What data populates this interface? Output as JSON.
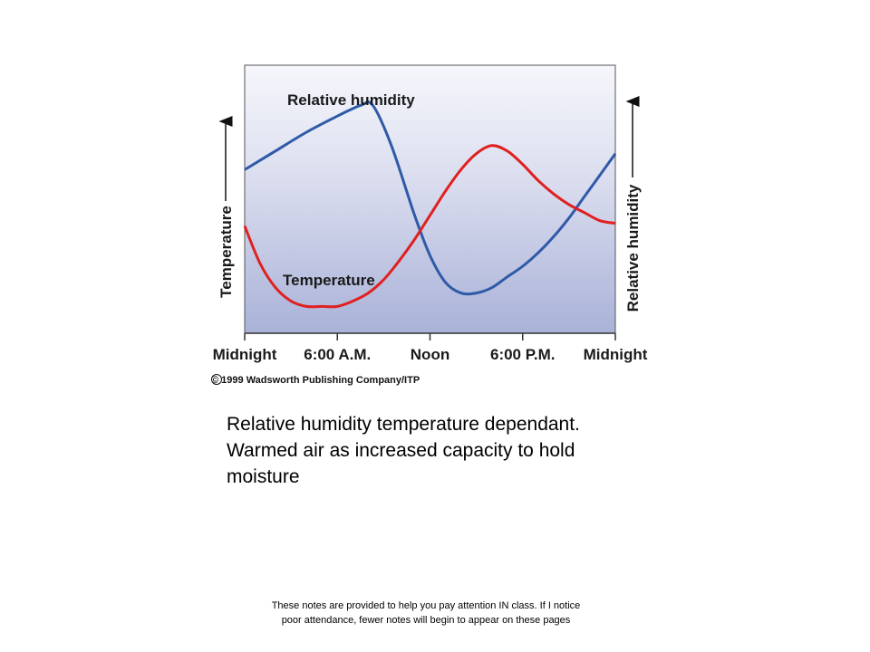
{
  "chart_data": {
    "type": "line",
    "x_categories": [
      "Midnight",
      "6:00 A.M.",
      "Noon",
      "6:00 P.M.",
      "Midnight"
    ],
    "x_hours": [
      0,
      6,
      12,
      18,
      24
    ],
    "y_left_label": "Temperature",
    "y_right_label": "Relative humidity",
    "y_scale": "unlabeled, relative",
    "series": [
      {
        "name": "Relative humidity",
        "color": "#2f5aa8",
        "x": [
          0,
          2,
          4,
          6,
          7.5,
          8.3,
          9.5,
          11,
          12,
          13,
          14,
          15,
          16,
          17,
          18,
          19,
          20,
          21,
          22,
          23,
          24
        ],
        "y": [
          0.61,
          0.68,
          0.75,
          0.81,
          0.85,
          0.85,
          0.7,
          0.44,
          0.29,
          0.19,
          0.15,
          0.15,
          0.17,
          0.21,
          0.25,
          0.3,
          0.36,
          0.43,
          0.51,
          0.59,
          0.67
        ]
      },
      {
        "name": "Temperature",
        "color": "#e02020",
        "x": [
          0,
          1,
          2,
          3,
          4,
          5,
          6,
          7,
          8,
          9,
          10,
          11,
          12,
          13,
          14,
          15,
          16,
          17,
          18,
          19,
          20,
          21,
          22,
          23,
          24
        ],
        "y": [
          0.4,
          0.26,
          0.17,
          0.12,
          0.1,
          0.1,
          0.1,
          0.12,
          0.15,
          0.2,
          0.27,
          0.35,
          0.44,
          0.53,
          0.61,
          0.67,
          0.7,
          0.68,
          0.63,
          0.57,
          0.52,
          0.48,
          0.45,
          0.42,
          0.41
        ]
      }
    ],
    "grid": false
  },
  "copyright": "© 1999 Wadsworth Publishing Company/ITP",
  "caption": {
    "line1": "Relative humidity temperature dependant.",
    "line2": "Warmed air as increased capacity to hold",
    "line3": "moisture"
  },
  "footer": {
    "line1": "These notes are provided to help you pay attention IN class. If I notice",
    "line2": "poor attendance, fewer notes will begin to appear on these pages"
  }
}
